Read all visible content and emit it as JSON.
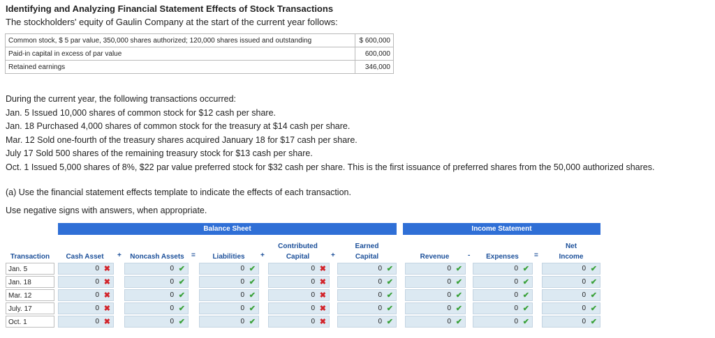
{
  "title": "Identifying and Analyzing Financial Statement Effects of Stock Transactions",
  "intro": "The stockholders' equity of Gaulin Company at the start of the current year follows:",
  "equity_rows": [
    {
      "label": "Common stock, $ 5 par value, 350,000 shares authorized; 120,000 shares issued and outstanding",
      "value": "$ 600,000"
    },
    {
      "label": "Paid-in capital in excess of par value",
      "value": "600,000"
    },
    {
      "label": "Retained earnings",
      "value": "346,000"
    }
  ],
  "transactions_intro": "During the current year, the following transactions occurred:",
  "transactions": [
    "Jan. 5 Issued 10,000 shares of common stock for $12 cash per share.",
    "Jan. 18 Purchased 4,000 shares of common stock for the treasury at $14 cash per share.",
    "Mar. 12 Sold one-fourth of the treasury shares acquired January 18 for $17 cash per share.",
    "July 17 Sold 500 shares of the remaining treasury stock for $13 cash per share.",
    "Oct. 1 Issued 5,000 shares of 8%, $22 par value preferred stock for $32 cash per share. This is the first issuance of preferred shares from the 50,000 authorized shares."
  ],
  "question_a": "(a) Use the financial statement effects template to indicate the effects of each transaction.",
  "instruction": "Use negative signs with answers, when appropriate.",
  "template": {
    "balance_sheet_title": "Balance Sheet",
    "income_statement_title": "Income Statement",
    "headers": {
      "transaction": "Transaction",
      "cash_asset": "Cash Asset",
      "plus1": "+",
      "noncash_assets": "Noncash Assets",
      "eq1": "=",
      "liabilities": "Liabilities",
      "plus2": "+",
      "contributed_line1": "Contributed",
      "contributed_line2": "Capital",
      "plus3": "+",
      "earned_line1": "Earned",
      "earned_line2": "Capital",
      "revenue": "Revenue",
      "minus": "-",
      "expenses": "Expenses",
      "eq2": "=",
      "net_line1": "Net",
      "net_line2": "Income"
    },
    "rows": [
      {
        "label": "Jan. 5",
        "cash": "0",
        "noncash": "0",
        "liabilities": "0",
        "contributed": "0",
        "earned": "0",
        "revenue": "0",
        "expenses": "0",
        "net": "0"
      },
      {
        "label": "Jan. 18",
        "cash": "0",
        "noncash": "0",
        "liabilities": "0",
        "contributed": "0",
        "earned": "0",
        "revenue": "0",
        "expenses": "0",
        "net": "0"
      },
      {
        "label": "Mar. 12",
        "cash": "0",
        "noncash": "0",
        "liabilities": "0",
        "contributed": "0",
        "earned": "0",
        "revenue": "0",
        "expenses": "0",
        "net": "0"
      },
      {
        "label": "July. 17",
        "cash": "0",
        "noncash": "0",
        "liabilities": "0",
        "contributed": "0",
        "earned": "0",
        "revenue": "0",
        "expenses": "0",
        "net": "0"
      },
      {
        "label": "Oct. 1",
        "cash": "0",
        "noncash": "0",
        "liabilities": "0",
        "contributed": "0",
        "earned": "0",
        "revenue": "0",
        "expenses": "0",
        "net": "0"
      }
    ],
    "marks": {
      "cash": "✖",
      "noncash": "✔",
      "liabilities": "✔",
      "contributed": "✖",
      "earned": "✔",
      "revenue": "✔",
      "expenses": "✔",
      "net": "✔"
    },
    "colors": {
      "header_bar": "#2f6fd6",
      "cell_fill": "#dce9f2",
      "correct": "#3aa13a",
      "incorrect": "#d2232a"
    }
  }
}
